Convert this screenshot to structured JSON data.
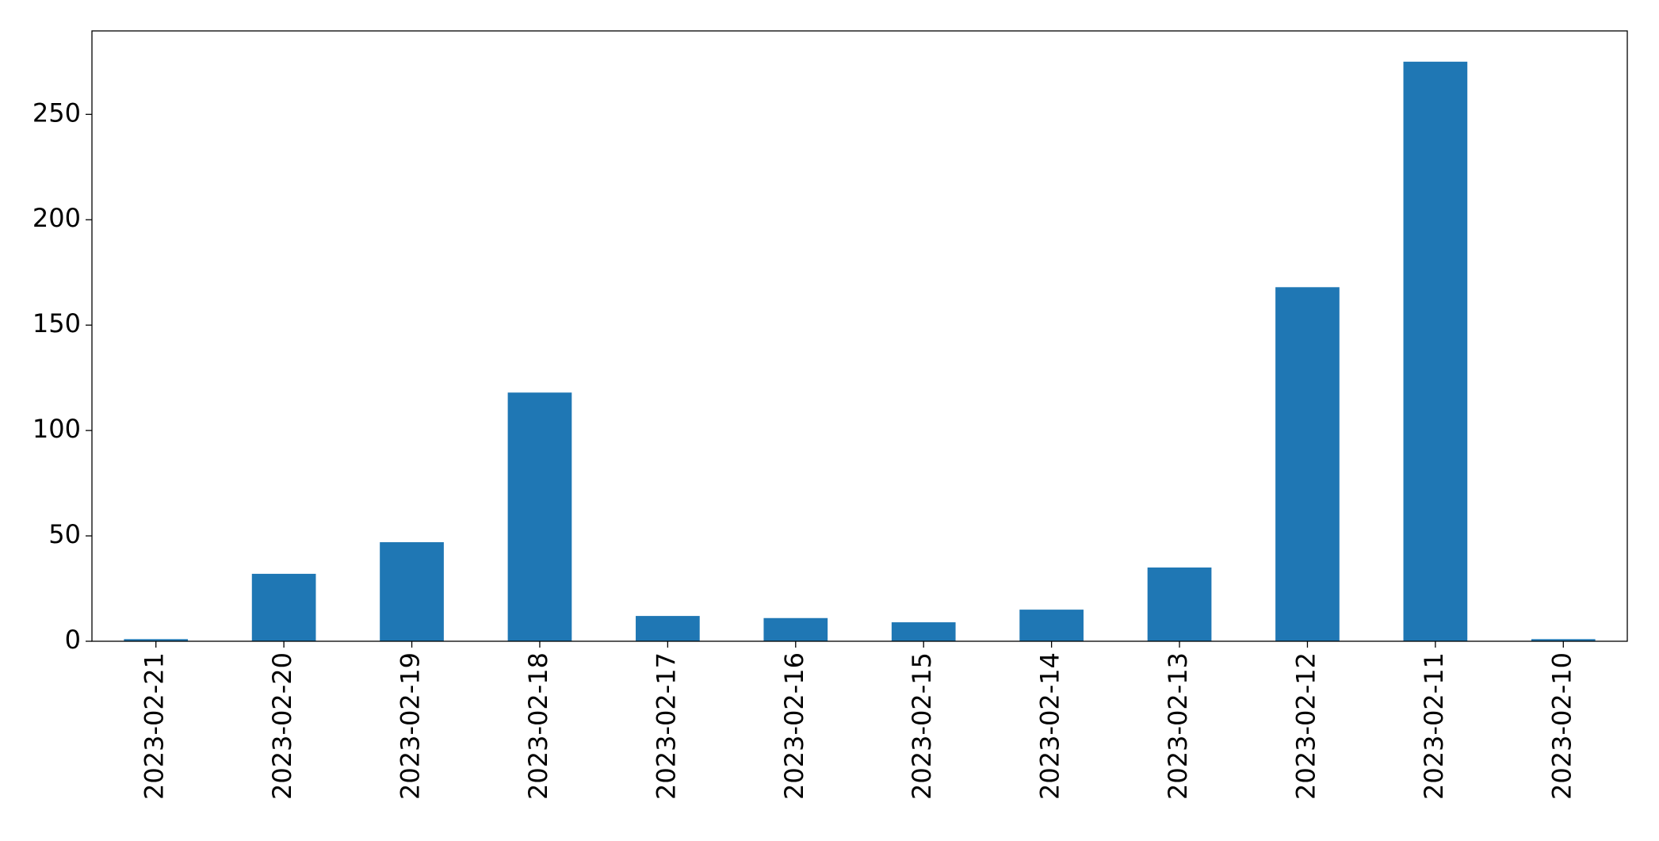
{
  "chart_data": {
    "type": "bar",
    "categories": [
      "2023-02-21",
      "2023-02-20",
      "2023-02-19",
      "2023-02-18",
      "2023-02-17",
      "2023-02-16",
      "2023-02-15",
      "2023-02-14",
      "2023-02-13",
      "2023-02-12",
      "2023-02-11",
      "2023-02-10"
    ],
    "values": [
      1,
      32,
      47,
      118,
      12,
      11,
      9,
      15,
      35,
      168,
      275,
      1
    ],
    "color": "#1f77b4",
    "ylim": [
      0,
      289.6
    ],
    "yticks": [
      0,
      50,
      100,
      150,
      200,
      250
    ],
    "grid": false
  }
}
